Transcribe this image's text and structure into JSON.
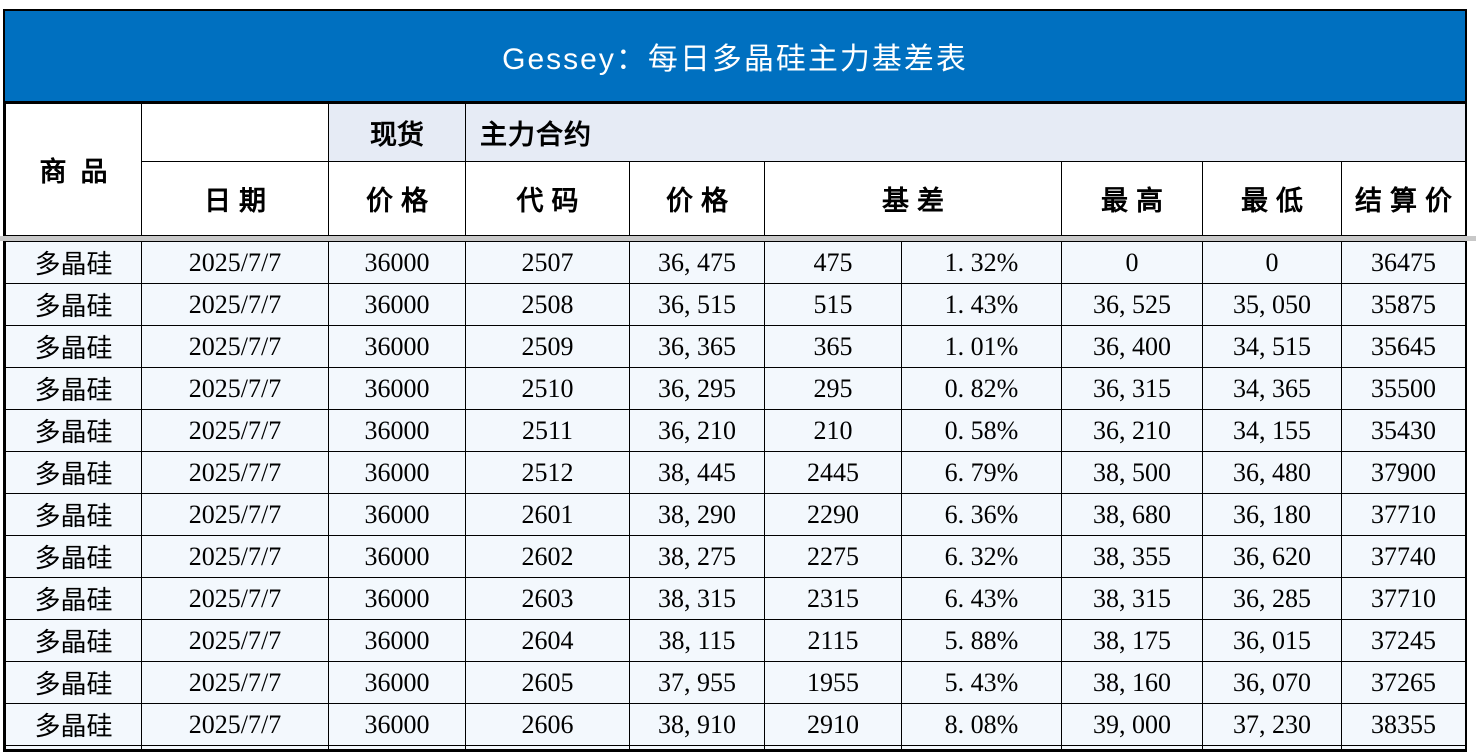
{
  "title": "Gessey：每日多晶硅主力基差表",
  "colors": {
    "title_bg": "#0070c0",
    "title_text": "#ffffff",
    "header_group_bg": "#e6ebf5",
    "row_bg": "#f3f8fd",
    "blue_text": "#4472c4",
    "red_text": "#fe0000",
    "divider": "#c8c8c8"
  },
  "header": {
    "commodity": "商品",
    "blank": "",
    "spot_group": "现货",
    "main_contract_group": "主力合约",
    "date": "日期",
    "spot_price": "价格",
    "code": "代码",
    "price": "价格",
    "basis": "基差",
    "high": "最高",
    "low": "最低",
    "settlement": "结算价"
  },
  "rows": [
    {
      "commodity": "多晶硅",
      "date": "2025/7/7",
      "spot": "36000",
      "code": "2507",
      "price": "36, 475",
      "basis": "475",
      "basis_pct": "1. 32%",
      "high": "0",
      "low": "0",
      "settle": "36475"
    },
    {
      "commodity": "多晶硅",
      "date": "2025/7/7",
      "spot": "36000",
      "code": "2508",
      "price": "36, 515",
      "basis": "515",
      "basis_pct": "1. 43%",
      "high": "36, 525",
      "low": "35, 050",
      "settle": "35875"
    },
    {
      "commodity": "多晶硅",
      "date": "2025/7/7",
      "spot": "36000",
      "code": "2509",
      "price": "36, 365",
      "basis": "365",
      "basis_pct": "1. 01%",
      "high": "36, 400",
      "low": "34, 515",
      "settle": "35645"
    },
    {
      "commodity": "多晶硅",
      "date": "2025/7/7",
      "spot": "36000",
      "code": "2510",
      "price": "36, 295",
      "basis": "295",
      "basis_pct": "0. 82%",
      "high": "36, 315",
      "low": "34, 365",
      "settle": "35500"
    },
    {
      "commodity": "多晶硅",
      "date": "2025/7/7",
      "spot": "36000",
      "code": "2511",
      "price": "36, 210",
      "basis": "210",
      "basis_pct": "0. 58%",
      "high": "36, 210",
      "low": "34, 155",
      "settle": "35430"
    },
    {
      "commodity": "多晶硅",
      "date": "2025/7/7",
      "spot": "36000",
      "code": "2512",
      "price": "38, 445",
      "basis": "2445",
      "basis_pct": "6. 79%",
      "high": "38, 500",
      "low": "36, 480",
      "settle": "37900"
    },
    {
      "commodity": "多晶硅",
      "date": "2025/7/7",
      "spot": "36000",
      "code": "2601",
      "price": "38, 290",
      "basis": "2290",
      "basis_pct": "6. 36%",
      "high": "38, 680",
      "low": "36, 180",
      "settle": "37710"
    },
    {
      "commodity": "多晶硅",
      "date": "2025/7/7",
      "spot": "36000",
      "code": "2602",
      "price": "38, 275",
      "basis": "2275",
      "basis_pct": "6. 32%",
      "high": "38, 355",
      "low": "36, 620",
      "settle": "37740"
    },
    {
      "commodity": "多晶硅",
      "date": "2025/7/7",
      "spot": "36000",
      "code": "2603",
      "price": "38, 315",
      "basis": "2315",
      "basis_pct": "6. 43%",
      "high": "38, 315",
      "low": "36, 285",
      "settle": "37710"
    },
    {
      "commodity": "多晶硅",
      "date": "2025/7/7",
      "spot": "36000",
      "code": "2604",
      "price": "38, 115",
      "basis": "2115",
      "basis_pct": "5. 88%",
      "high": "38, 175",
      "low": "36, 015",
      "settle": "37245"
    },
    {
      "commodity": "多晶硅",
      "date": "2025/7/7",
      "spot": "36000",
      "code": "2605",
      "price": "37, 955",
      "basis": "1955",
      "basis_pct": "5. 43%",
      "high": "38, 160",
      "low": "36, 070",
      "settle": "37265"
    },
    {
      "commodity": "多晶硅",
      "date": "2025/7/7",
      "spot": "36000",
      "code": "2606",
      "price": "38, 910",
      "basis": "2910",
      "basis_pct": "8. 08%",
      "high": "39, 000",
      "low": "37, 230",
      "settle": "38355"
    }
  ]
}
